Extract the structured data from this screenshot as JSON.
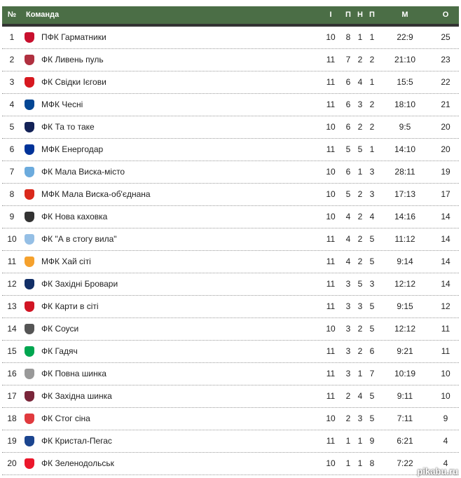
{
  "header": {
    "num": "№",
    "team": "Команда",
    "games": "І",
    "wins": "П",
    "draws": "Н",
    "losses": "П",
    "goals": "М",
    "points": "О"
  },
  "rows": [
    {
      "pos": "1",
      "team": "ПФК Гарматники",
      "g": "10",
      "w": "8",
      "d": "1",
      "l": "1",
      "m": "22:9",
      "p": "25",
      "crest": "#c8102e"
    },
    {
      "pos": "2",
      "team": "ФК Ливень пуль",
      "g": "11",
      "w": "7",
      "d": "2",
      "l": "2",
      "m": "21:10",
      "p": "23",
      "crest": "#b03040"
    },
    {
      "pos": "3",
      "team": "ФК Свідки Ієгови",
      "g": "11",
      "w": "6",
      "d": "4",
      "l": "1",
      "m": "15:5",
      "p": "22",
      "crest": "#d71920"
    },
    {
      "pos": "4",
      "team": "МФК Чесні",
      "g": "11",
      "w": "6",
      "d": "3",
      "l": "2",
      "m": "18:10",
      "p": "21",
      "crest": "#034694"
    },
    {
      "pos": "5",
      "team": "ФК Та то таке",
      "g": "10",
      "w": "6",
      "d": "2",
      "l": "2",
      "m": "9:5",
      "p": "20",
      "crest": "#132257"
    },
    {
      "pos": "6",
      "team": "МФК Енергодар",
      "g": "11",
      "w": "5",
      "d": "5",
      "l": "1",
      "m": "14:10",
      "p": "20",
      "crest": "#003399"
    },
    {
      "pos": "7",
      "team": "ФК Мала Виска-місто",
      "g": "10",
      "w": "6",
      "d": "1",
      "l": "3",
      "m": "28:11",
      "p": "19",
      "crest": "#6cabdd"
    },
    {
      "pos": "8",
      "team": "МФК Мала Виска-об'єднана",
      "g": "10",
      "w": "5",
      "d": "2",
      "l": "3",
      "m": "17:13",
      "p": "17",
      "crest": "#da291c"
    },
    {
      "pos": "9",
      "team": "ФК Нова каховка",
      "g": "10",
      "w": "4",
      "d": "2",
      "l": "4",
      "m": "14:16",
      "p": "14",
      "crest": "#333333"
    },
    {
      "pos": "10",
      "team": "ФК \"А в стогу вила\"",
      "g": "11",
      "w": "4",
      "d": "2",
      "l": "5",
      "m": "11:12",
      "p": "14",
      "crest": "#95bfe5"
    },
    {
      "pos": "11",
      "team": "МФК Хай сіті",
      "g": "11",
      "w": "4",
      "d": "2",
      "l": "5",
      "m": "9:14",
      "p": "14",
      "crest": "#f5a12d"
    },
    {
      "pos": "12",
      "team": "ФК Західні Бровари",
      "g": "11",
      "w": "3",
      "d": "5",
      "l": "3",
      "m": "12:12",
      "p": "14",
      "crest": "#122f67"
    },
    {
      "pos": "13",
      "team": "ФК Карти в сіті",
      "g": "11",
      "w": "3",
      "d": "3",
      "l": "5",
      "m": "9:15",
      "p": "12",
      "crest": "#d11524"
    },
    {
      "pos": "14",
      "team": "ФК Соуси",
      "g": "10",
      "w": "3",
      "d": "2",
      "l": "5",
      "m": "12:12",
      "p": "11",
      "crest": "#555555"
    },
    {
      "pos": "15",
      "team": "ФК Гадяч",
      "g": "11",
      "w": "3",
      "d": "2",
      "l": "6",
      "m": "9:21",
      "p": "11",
      "crest": "#00a650"
    },
    {
      "pos": "16",
      "team": "ФК Повна шинка",
      "g": "11",
      "w": "3",
      "d": "1",
      "l": "7",
      "m": "10:19",
      "p": "10",
      "crest": "#999999"
    },
    {
      "pos": "17",
      "team": "ФК Західна шинка",
      "g": "11",
      "w": "2",
      "d": "4",
      "l": "5",
      "m": "9:11",
      "p": "10",
      "crest": "#7a263a"
    },
    {
      "pos": "18",
      "team": "ФК Стог сіна",
      "g": "10",
      "w": "2",
      "d": "3",
      "l": "5",
      "m": "7:11",
      "p": "9",
      "crest": "#e03a3e"
    },
    {
      "pos": "19",
      "team": "ФК Кристал-Пегас",
      "g": "11",
      "w": "1",
      "d": "1",
      "l": "9",
      "m": "6:21",
      "p": "4",
      "crest": "#1b458f"
    },
    {
      "pos": "20",
      "team": "ФК Зеленодольськ",
      "g": "10",
      "w": "1",
      "d": "1",
      "l": "8",
      "m": "7:22",
      "p": "4",
      "crest": "#eb172b"
    }
  ],
  "watermark": "pikabu.ru"
}
